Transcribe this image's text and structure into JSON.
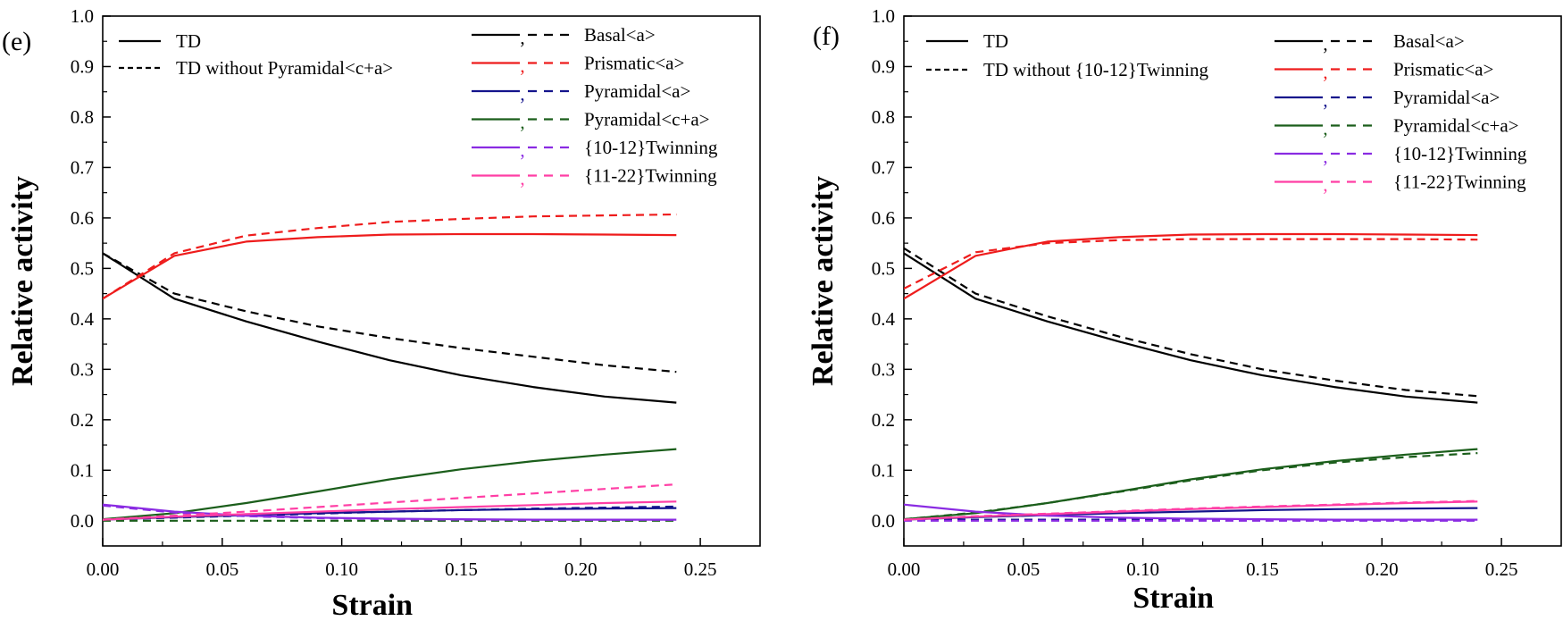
{
  "chart_data": [
    {
      "type": "line",
      "panel_label": "(e)",
      "xlabel": "Strain",
      "ylabel": "Relative activity",
      "xlim": [
        0,
        0.275
      ],
      "ylim": [
        -0.05,
        1.0
      ],
      "xticks": [
        "0.00",
        "0.05",
        "0.10",
        "0.15",
        "0.20",
        "0.25"
      ],
      "yticks": [
        "0.0",
        "0.1",
        "0.2",
        "0.3",
        "0.4",
        "0.5",
        "0.6",
        "0.7",
        "0.8",
        "0.9",
        "1.0"
      ],
      "style_legend": [
        {
          "label": "TD",
          "dash": "solid"
        },
        {
          "label": "TD without Pyramidal<c+a>",
          "dash": "dashed"
        }
      ],
      "mode_legend": [
        {
          "label": "Basal<a>",
          "color": "#000000",
          "sep": ","
        },
        {
          "label": "Prismatic<a>",
          "color": "#ee1c1c",
          "sep": ","
        },
        {
          "label": "Pyramidal<a>",
          "color": "#14148c",
          "sep": ","
        },
        {
          "label": "Pyramidal<c+a>",
          "color": "#1b5e1b",
          "sep": ","
        },
        {
          "label": "{10-12}Twinning",
          "color": "#8a2be2",
          "sep": ","
        },
        {
          "label": "{11-22}Twinning",
          "color": "#ff3ea5",
          "sep": ","
        }
      ],
      "x": [
        0,
        0.03,
        0.06,
        0.09,
        0.12,
        0.15,
        0.18,
        0.21,
        0.24
      ],
      "series": [
        {
          "name": "Basal<a> TD",
          "color": "#000000",
          "dash": "solid",
          "values": [
            0.53,
            0.44,
            0.395,
            0.355,
            0.318,
            0.288,
            0.265,
            0.246,
            0.234
          ]
        },
        {
          "name": "Basal<a> TD without Pyramidal<c+a>",
          "color": "#000000",
          "dash": "dashed",
          "values": [
            0.53,
            0.45,
            0.415,
            0.385,
            0.362,
            0.342,
            0.325,
            0.308,
            0.295
          ]
        },
        {
          "name": "Prismatic<a> TD",
          "color": "#ee1c1c",
          "dash": "solid",
          "values": [
            0.44,
            0.525,
            0.553,
            0.562,
            0.567,
            0.568,
            0.568,
            0.567,
            0.566
          ]
        },
        {
          "name": "Prismatic<a> TD without Pyramidal<c+a>",
          "color": "#ee1c1c",
          "dash": "dashed",
          "values": [
            0.44,
            0.53,
            0.565,
            0.58,
            0.592,
            0.598,
            0.603,
            0.605,
            0.607
          ]
        },
        {
          "name": "Pyramidal<a> TD",
          "color": "#14148c",
          "dash": "solid",
          "values": [
            0.002,
            0.007,
            0.011,
            0.015,
            0.018,
            0.021,
            0.023,
            0.024,
            0.025
          ]
        },
        {
          "name": "Pyramidal<a> TD without Pyramidal<c+a>",
          "color": "#14148c",
          "dash": "dashed",
          "values": [
            0.002,
            0.006,
            0.01,
            0.014,
            0.018,
            0.021,
            0.024,
            0.026,
            0.028
          ]
        },
        {
          "name": "Pyramidal<c+a> TD",
          "color": "#1b5e1b",
          "dash": "solid",
          "values": [
            0.003,
            0.015,
            0.035,
            0.058,
            0.082,
            0.102,
            0.118,
            0.131,
            0.142
          ]
        },
        {
          "name": "Pyramidal<c+a> TD without Pyramidal<c+a>",
          "color": "#1b5e1b",
          "dash": "dashed",
          "values": [
            0.0,
            0.0,
            0.0,
            0.0,
            0.0,
            0.0,
            0.0,
            0.0,
            0.0
          ]
        },
        {
          "name": "{10-12}Twinning TD",
          "color": "#8a2be2",
          "dash": "solid",
          "values": [
            0.032,
            0.018,
            0.01,
            0.006,
            0.004,
            0.003,
            0.002,
            0.002,
            0.002
          ]
        },
        {
          "name": "{10-12}Twinning TD without Pyramidal<c+a>",
          "color": "#8a2be2",
          "dash": "dashed",
          "values": [
            0.03,
            0.016,
            0.009,
            0.005,
            0.003,
            0.002,
            0.002,
            0.002,
            0.002
          ]
        },
        {
          "name": "{11-22}Twinning TD",
          "color": "#ff3ea5",
          "dash": "solid",
          "values": [
            0.002,
            0.008,
            0.013,
            0.018,
            0.023,
            0.027,
            0.031,
            0.035,
            0.038
          ]
        },
        {
          "name": "{11-22}Twinning TD without Pyramidal<c+a>",
          "color": "#ff3ea5",
          "dash": "dashed",
          "values": [
            0.002,
            0.01,
            0.018,
            0.027,
            0.036,
            0.045,
            0.054,
            0.063,
            0.072
          ]
        }
      ]
    },
    {
      "type": "line",
      "panel_label": "(f)",
      "xlabel": "Strain",
      "ylabel": "Relative activity",
      "xlim": [
        0,
        0.275
      ],
      "ylim": [
        -0.05,
        1.0
      ],
      "xticks": [
        "0.00",
        "0.05",
        "0.10",
        "0.15",
        "0.20",
        "0.25"
      ],
      "yticks": [
        "0.0",
        "0.1",
        "0.2",
        "0.3",
        "0.4",
        "0.5",
        "0.6",
        "0.7",
        "0.8",
        "0.9",
        "1.0"
      ],
      "style_legend": [
        {
          "label": "TD",
          "dash": "solid"
        },
        {
          "label": "TD without {10-12}Twinning",
          "dash": "dashed"
        }
      ],
      "mode_legend": [
        {
          "label": "Basal<a>",
          "color": "#000000",
          "sep": ","
        },
        {
          "label": "Prismatic<a>",
          "color": "#ee1c1c",
          "sep": ","
        },
        {
          "label": "Pyramidal<a>",
          "color": "#14148c",
          "sep": ","
        },
        {
          "label": "Pyramidal<c+a>",
          "color": "#1b5e1b",
          "sep": ","
        },
        {
          "label": "{10-12}Twinning",
          "color": "#8a2be2",
          "sep": ","
        },
        {
          "label": "{11-22}Twinning",
          "color": "#ff3ea5",
          "sep": ","
        }
      ],
      "x": [
        0,
        0.03,
        0.06,
        0.09,
        0.12,
        0.15,
        0.18,
        0.21,
        0.24
      ],
      "series": [
        {
          "name": "Basal<a> TD",
          "color": "#000000",
          "dash": "solid",
          "values": [
            0.53,
            0.44,
            0.395,
            0.355,
            0.318,
            0.288,
            0.265,
            0.246,
            0.234
          ]
        },
        {
          "name": "Basal<a> TD without {10-12}Twinning",
          "color": "#000000",
          "dash": "dashed",
          "values": [
            0.54,
            0.45,
            0.405,
            0.365,
            0.33,
            0.3,
            0.278,
            0.259,
            0.247
          ]
        },
        {
          "name": "Prismatic<a> TD",
          "color": "#ee1c1c",
          "dash": "solid",
          "values": [
            0.44,
            0.525,
            0.553,
            0.562,
            0.567,
            0.568,
            0.568,
            0.567,
            0.566
          ]
        },
        {
          "name": "Prismatic<a> TD without {10-12}Twinning",
          "color": "#ee1c1c",
          "dash": "dashed",
          "values": [
            0.46,
            0.532,
            0.55,
            0.556,
            0.558,
            0.558,
            0.558,
            0.558,
            0.557
          ]
        },
        {
          "name": "Pyramidal<a> TD",
          "color": "#14148c",
          "dash": "solid",
          "values": [
            0.002,
            0.007,
            0.011,
            0.015,
            0.018,
            0.021,
            0.023,
            0.024,
            0.025
          ]
        },
        {
          "name": "Pyramidal<a> TD without {10-12}Twinning",
          "color": "#14148c",
          "dash": "dashed",
          "values": [
            0.002,
            0.002,
            0.002,
            0.002,
            0.002,
            0.002,
            0.002,
            0.002,
            0.002
          ]
        },
        {
          "name": "Pyramidal<c+a> TD",
          "color": "#1b5e1b",
          "dash": "solid",
          "values": [
            0.003,
            0.015,
            0.035,
            0.058,
            0.082,
            0.102,
            0.118,
            0.131,
            0.142
          ]
        },
        {
          "name": "Pyramidal<c+a> TD without {10-12}Twinning",
          "color": "#1b5e1b",
          "dash": "dashed",
          "values": [
            0.003,
            0.016,
            0.035,
            0.057,
            0.08,
            0.1,
            0.115,
            0.126,
            0.134
          ]
        },
        {
          "name": "{10-12}Twinning TD",
          "color": "#8a2be2",
          "dash": "solid",
          "values": [
            0.032,
            0.018,
            0.01,
            0.006,
            0.004,
            0.003,
            0.002,
            0.002,
            0.002
          ]
        },
        {
          "name": "{10-12}Twinning TD without {10-12}Twinning",
          "color": "#8a2be2",
          "dash": "dashed",
          "values": [
            0.0,
            0.0,
            0.0,
            0.0,
            0.0,
            0.0,
            0.0,
            0.0,
            0.0
          ]
        },
        {
          "name": "{11-22}Twinning TD",
          "color": "#ff3ea5",
          "dash": "solid",
          "values": [
            0.002,
            0.008,
            0.013,
            0.018,
            0.023,
            0.027,
            0.031,
            0.035,
            0.038
          ]
        },
        {
          "name": "{11-22}Twinning TD without {10-12}Twinning",
          "color": "#ff3ea5",
          "dash": "dashed",
          "values": [
            0.002,
            0.009,
            0.014,
            0.019,
            0.024,
            0.028,
            0.032,
            0.036,
            0.039
          ]
        }
      ]
    }
  ]
}
